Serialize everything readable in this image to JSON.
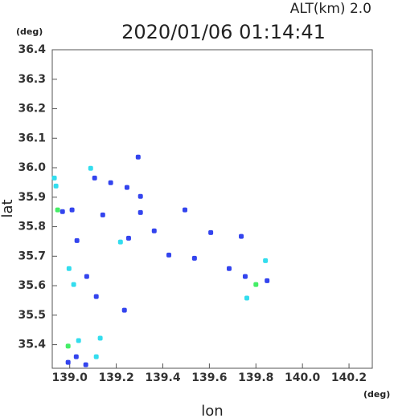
{
  "chart_data": {
    "type": "scatter",
    "title": "2020/01/06 01:14:41",
    "subtitle": "ALT(km) 2.0",
    "x_label": "lon",
    "x_unit": "(deg)",
    "y_label": "lat",
    "y_unit": "(deg)",
    "xlim": [
      138.925,
      140.3
    ],
    "ylim": [
      35.32,
      36.4
    ],
    "xticks": [
      {
        "value": 139.0,
        "label": "139.0"
      },
      {
        "value": 139.2,
        "label": "139.2"
      },
      {
        "value": 139.4,
        "label": "139.4"
      },
      {
        "value": 139.6,
        "label": "139.6"
      },
      {
        "value": 139.8,
        "label": "139.8"
      },
      {
        "value": 140.0,
        "label": "140.0"
      },
      {
        "value": 140.2,
        "label": "140.2"
      }
    ],
    "yticks": [
      {
        "value": 35.4,
        "label": "35.4"
      },
      {
        "value": 35.5,
        "label": "35.5"
      },
      {
        "value": 35.6,
        "label": "35.6"
      },
      {
        "value": 35.7,
        "label": "35.7"
      },
      {
        "value": 35.8,
        "label": "35.8"
      },
      {
        "value": 35.9,
        "label": "35.9"
      },
      {
        "value": 36.0,
        "label": "36.0"
      },
      {
        "value": 36.1,
        "label": "36.1"
      },
      {
        "value": 36.2,
        "label": "36.2"
      },
      {
        "value": 36.3,
        "label": "36.3"
      },
      {
        "value": 36.4,
        "label": "36.4"
      }
    ],
    "x": [
      138.934,
      138.941,
      138.948,
      138.969,
      139.01,
      139.09,
      139.107,
      139.176,
      139.246,
      139.294,
      139.304,
      139.253,
      139.218,
      139.363,
      139.495,
      139.606,
      139.536,
      139.426,
      139.737,
      139.685,
      139.754,
      139.841,
      139.8,
      139.761,
      139.848,
      139.031,
      138.997,
      139.017,
      139.073,
      139.114,
      139.235,
      139.038,
      138.993,
      139.131,
      139.114,
      139.028,
      138.993,
      139.069,
      139.304,
      139.142
    ],
    "values": [
      35.965,
      35.938,
      35.857,
      35.851,
      35.857,
      35.998,
      35.965,
      35.949,
      35.933,
      36.036,
      35.903,
      35.761,
      35.748,
      35.786,
      35.857,
      35.78,
      35.693,
      35.704,
      35.767,
      35.658,
      35.631,
      35.685,
      35.604,
      35.558,
      35.617,
      35.753,
      35.658,
      35.604,
      35.631,
      35.563,
      35.517,
      35.414,
      35.395,
      35.422,
      35.359,
      35.359,
      35.34,
      35.332,
      35.848,
      35.84
    ],
    "colors": [
      "#33ddee",
      "#33ddee",
      "#44ee66",
      "#3344ee",
      "#3344ee",
      "#33ddee",
      "#3344ee",
      "#3344ee",
      "#3344ee",
      "#3344ee",
      "#3344ee",
      "#3344ee",
      "#33ddee",
      "#3344ee",
      "#3344ee",
      "#3344ee",
      "#3344ee",
      "#3344ee",
      "#3344ee",
      "#3344ee",
      "#3344ee",
      "#33ddee",
      "#44ee66",
      "#33ddee",
      "#3344ee",
      "#3344ee",
      "#33ddee",
      "#33ddee",
      "#3344ee",
      "#3344ee",
      "#3344ee",
      "#33ddee",
      "#44ee66",
      "#33ddee",
      "#33ddee",
      "#3344ee",
      "#3344ee",
      "#3344ee",
      "#3344ee",
      "#3344ee"
    ]
  }
}
